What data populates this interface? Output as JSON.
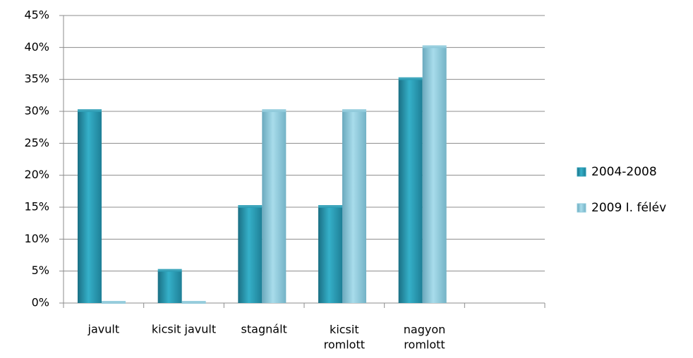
{
  "chart_data": {
    "type": "bar",
    "categories": [
      "javult",
      "kicsit javult",
      "stagnált",
      "kicsit\nromlott",
      "nagyon\nromlott",
      null
    ],
    "series": [
      {
        "name": "2004-2008",
        "color": "#2b9db6",
        "values": [
          30,
          5,
          15,
          15,
          35,
          null
        ]
      },
      {
        "name": "2009 I. félév",
        "color": "#8ecadb",
        "values": [
          0,
          0,
          30,
          30,
          40,
          null
        ]
      }
    ],
    "ylim": [
      0,
      45
    ],
    "yticks": [
      {
        "value": 0,
        "label": "0%"
      },
      {
        "value": 5,
        "label": "5%"
      },
      {
        "value": 10,
        "label": "10%"
      },
      {
        "value": 15,
        "label": "15%"
      },
      {
        "value": 20,
        "label": "20%"
      },
      {
        "value": 25,
        "label": "25%"
      },
      {
        "value": 30,
        "label": "30%"
      },
      {
        "value": 35,
        "label": "35%"
      },
      {
        "value": 40,
        "label": "40%"
      },
      {
        "value": 45,
        "label": "45%"
      }
    ],
    "grid": true,
    "legend": "right"
  }
}
